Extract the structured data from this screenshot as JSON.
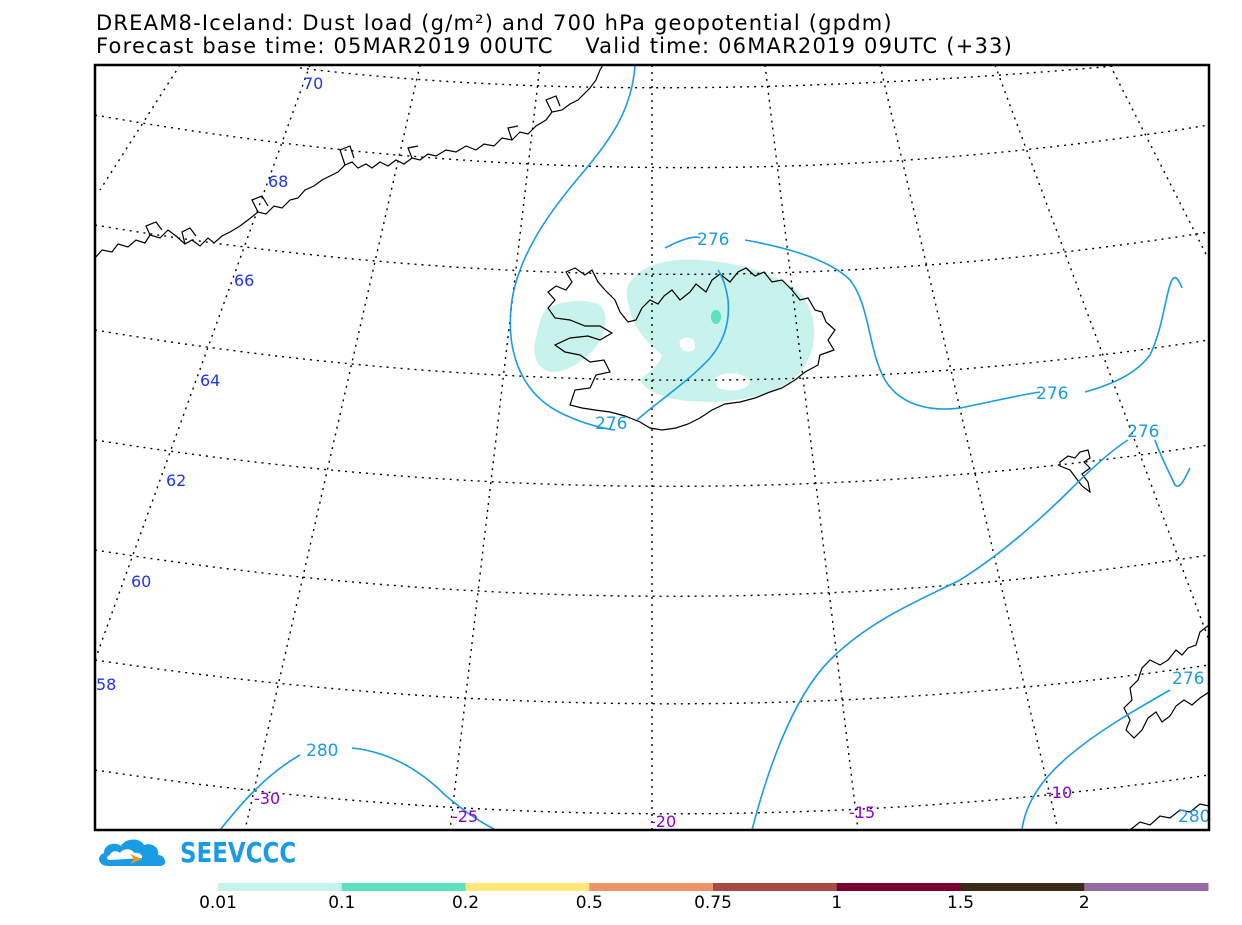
{
  "title": {
    "line1": "DREAM8-Iceland: Dust load (g/m²) and 700 hPa geopotential (gpdm)",
    "line2": "Forecast base time: 05MAR2019 00UTC    Valid time: 06MAR2019 09UTC (+33)"
  },
  "latitude_labels": [
    "70",
    "68",
    "66",
    "64",
    "62",
    "60",
    "58"
  ],
  "longitude_labels": [
    "-30",
    "-25",
    "-20",
    "-15",
    "-10"
  ],
  "contour_labels": [
    "276",
    "276",
    "276",
    "276",
    "280",
    "276",
    "280"
  ],
  "logo": {
    "text": "SEEVCCC",
    "color": "#1a9be6"
  },
  "legend": {
    "labels": [
      "0.01",
      "0.1",
      "0.2",
      "0.5",
      "0.75",
      "1",
      "1.5",
      "2"
    ],
    "colors": [
      "#c8f2ec",
      "#5ce0bd",
      "#ffe87a",
      "#ee9268",
      "#a84a44",
      "#7a0030",
      "#3c2a18",
      "#9a6aa6"
    ]
  },
  "colors": {
    "contour": "#1a9be6",
    "dust_low": "#c8f2ec",
    "dust_mid": "#5ce0bd",
    "lat_label": "#2233ee",
    "lon_label": "#8a00d4"
  }
}
